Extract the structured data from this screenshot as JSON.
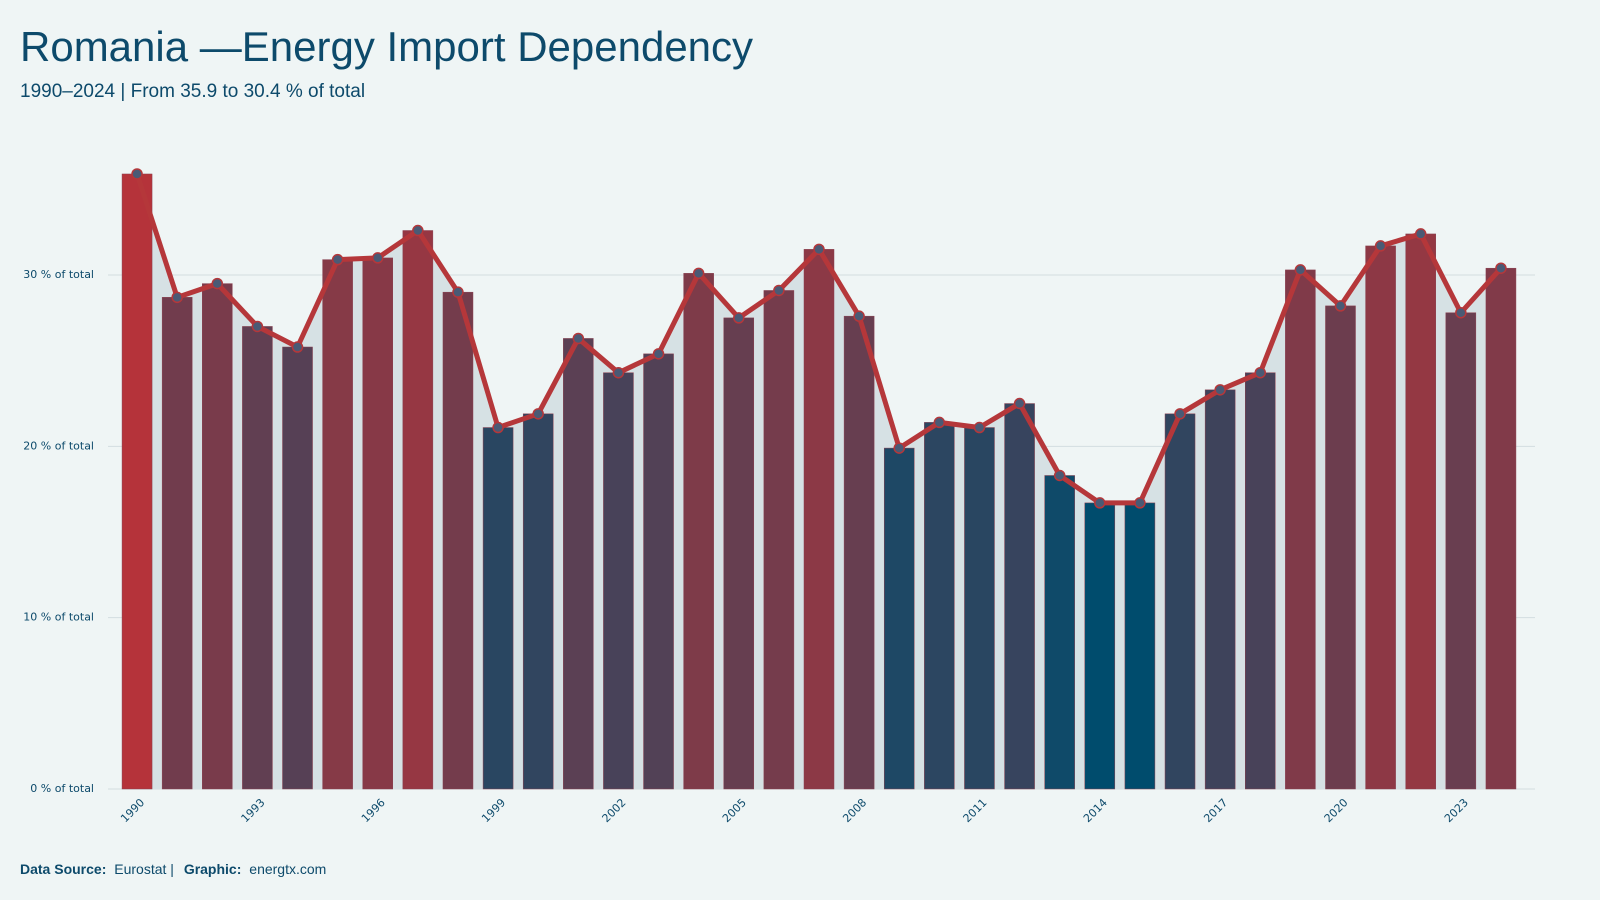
{
  "chart_data": {
    "type": "bar-line",
    "title": "Romania —Energy Import Dependency",
    "subtitle": "1990–2024 | From 35.9 to 30.4 % of total",
    "categories": [
      "1990",
      null,
      null,
      "1993",
      null,
      null,
      "1996",
      null,
      null,
      "1999",
      null,
      null,
      "2002",
      null,
      null,
      "2005",
      null,
      null,
      "2008",
      null,
      null,
      "2011",
      null,
      null,
      "2014",
      null,
      null,
      "2017",
      null,
      null,
      "2020",
      null,
      null,
      "2023",
      null
    ],
    "values": [
      35.9,
      28.7,
      29.5,
      27.0,
      25.8,
      30.9,
      31.0,
      32.6,
      29.0,
      21.1,
      21.9,
      26.3,
      24.3,
      25.4,
      30.1,
      27.5,
      29.1,
      31.5,
      27.6,
      19.9,
      21.4,
      21.1,
      22.5,
      18.3,
      16.7,
      16.7,
      21.9,
      23.3,
      24.3,
      30.3,
      28.2,
      31.7,
      32.4,
      27.8,
      30.4
    ],
    "color_low": "#004c6d",
    "color_high": "#b5333a",
    "line_color": "#b5373a",
    "area_color": "#d6e1e4",
    "ylim": [
      0,
      38
    ],
    "yticks": [
      {
        "value": 0,
        "label": "0 % of total"
      },
      {
        "value": 10,
        "label": "10 % of total"
      },
      {
        "value": 20,
        "label": "20 % of total"
      },
      {
        "value": 30,
        "label": "30 % of total"
      }
    ],
    "grid": true,
    "footer": {
      "source_label": "Data Source:",
      "source": "Eurostat |",
      "graphic_label": "Graphic:",
      "graphic": "energtx.com"
    }
  }
}
